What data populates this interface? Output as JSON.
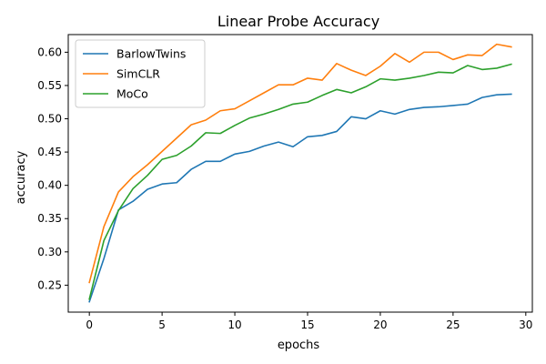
{
  "chart_data": {
    "type": "line",
    "title": "Linear Probe Accuracy",
    "xlabel": "epochs",
    "ylabel": "accuracy",
    "xlim": [
      -1.45,
      30.45
    ],
    "ylim": [
      0.2095,
      0.6265
    ],
    "xticks": [
      0,
      5,
      10,
      15,
      20,
      25,
      30
    ],
    "xtick_labels": [
      "0",
      "5",
      "10",
      "15",
      "20",
      "25",
      "30"
    ],
    "yticks": [
      0.25,
      0.3,
      0.35,
      0.4,
      0.45,
      0.5,
      0.55,
      0.6
    ],
    "ytick_labels": [
      "0.25",
      "0.30",
      "0.35",
      "0.40",
      "0.45",
      "0.50",
      "0.55",
      "0.60"
    ],
    "grid": false,
    "legend_position": "top-left",
    "x": [
      0,
      1,
      2,
      3,
      4,
      5,
      6,
      7,
      8,
      9,
      10,
      11,
      12,
      13,
      14,
      15,
      16,
      17,
      18,
      19,
      20,
      21,
      22,
      23,
      24,
      25,
      26,
      27,
      28,
      29
    ],
    "series": [
      {
        "name": "BarlowTwins",
        "color": "#1f77b4",
        "values": [
          0.225,
          0.29,
          0.363,
          0.376,
          0.394,
          0.402,
          0.404,
          0.424,
          0.436,
          0.436,
          0.447,
          0.451,
          0.459,
          0.465,
          0.458,
          0.473,
          0.475,
          0.481,
          0.503,
          0.5,
          0.512,
          0.507,
          0.514,
          0.517,
          0.518,
          0.52,
          0.522,
          0.532,
          0.536,
          0.537
        ]
      },
      {
        "name": "SimCLR",
        "color": "#ff7f0e",
        "values": [
          0.254,
          0.338,
          0.39,
          0.413,
          0.431,
          0.451,
          0.471,
          0.491,
          0.498,
          0.512,
          0.515,
          0.527,
          0.539,
          0.551,
          0.551,
          0.561,
          0.558,
          0.583,
          0.573,
          0.565,
          0.579,
          0.598,
          0.585,
          0.6,
          0.6,
          0.589,
          0.596,
          0.595,
          0.612,
          0.608
        ]
      },
      {
        "name": "MoCo",
        "color": "#2ca02c",
        "values": [
          0.229,
          0.317,
          0.362,
          0.395,
          0.415,
          0.439,
          0.445,
          0.459,
          0.479,
          0.478,
          0.49,
          0.501,
          0.507,
          0.514,
          0.522,
          0.525,
          0.535,
          0.544,
          0.539,
          0.548,
          0.56,
          0.558,
          0.561,
          0.565,
          0.57,
          0.569,
          0.58,
          0.574,
          0.576,
          0.582
        ]
      }
    ]
  }
}
